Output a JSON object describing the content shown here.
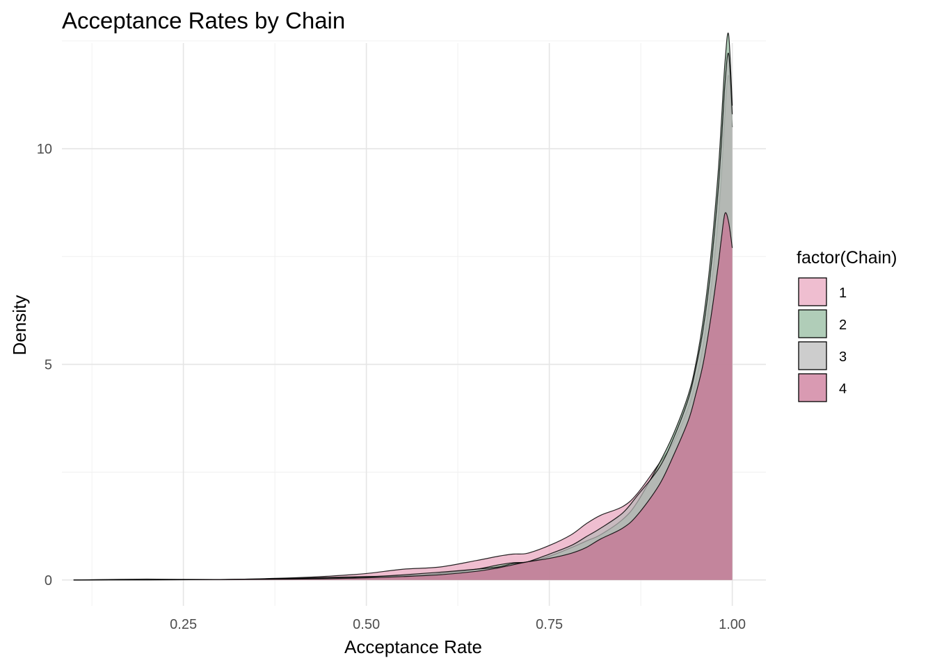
{
  "chart_data": {
    "type": "area",
    "title": "Acceptance Rates by Chain",
    "xlabel": "Acceptance Rate",
    "ylabel": "Density",
    "xlim": [
      0.084,
      1.046
    ],
    "ylim": [
      -0.6,
      12.45
    ],
    "x_ticks": [
      0.25,
      0.5,
      0.75,
      1.0
    ],
    "x_tick_labels": [
      "0.25",
      "0.50",
      "0.75",
      "1.00"
    ],
    "x_minor_ticks": [
      0.125,
      0.375,
      0.625,
      0.875
    ],
    "y_ticks": [
      0,
      5,
      10
    ],
    "y_tick_labels": [
      "0",
      "5",
      "10"
    ],
    "y_minor_ticks": [
      2.5,
      7.5,
      12.5
    ],
    "grid": true,
    "legend": {
      "title": "factor(Chain)",
      "placement": "right",
      "entries": [
        "1",
        "2",
        "3",
        "4"
      ]
    },
    "series": [
      {
        "name": "1",
        "color": "#E8A3BC",
        "x": [
          0.1,
          0.2,
          0.3,
          0.4,
          0.45,
          0.5,
          0.55,
          0.6,
          0.65,
          0.68,
          0.7,
          0.72,
          0.75,
          0.78,
          0.8,
          0.82,
          0.85,
          0.87,
          0.9,
          0.92,
          0.94,
          0.95,
          0.96,
          0.97,
          0.98,
          0.985,
          0.99,
          0.995,
          1.0
        ],
        "y": [
          0.0,
          0.01,
          0.01,
          0.05,
          0.09,
          0.15,
          0.25,
          0.3,
          0.45,
          0.55,
          0.6,
          0.62,
          0.8,
          1.05,
          1.3,
          1.5,
          1.7,
          2.0,
          2.7,
          3.2,
          4.0,
          4.6,
          5.4,
          6.6,
          8.2,
          9.3,
          10.8,
          11.7,
          10.5
        ]
      },
      {
        "name": "2",
        "color": "#8FB89A",
        "x": [
          0.1,
          0.2,
          0.3,
          0.4,
          0.45,
          0.5,
          0.55,
          0.6,
          0.65,
          0.68,
          0.7,
          0.72,
          0.75,
          0.78,
          0.8,
          0.82,
          0.85,
          0.87,
          0.9,
          0.92,
          0.94,
          0.95,
          0.96,
          0.97,
          0.98,
          0.985,
          0.99,
          0.995,
          1.0
        ],
        "y": [
          0.0,
          0.01,
          0.01,
          0.04,
          0.06,
          0.08,
          0.1,
          0.15,
          0.25,
          0.35,
          0.4,
          0.42,
          0.55,
          0.75,
          0.9,
          1.05,
          1.4,
          1.8,
          2.7,
          3.4,
          4.3,
          5.0,
          6.0,
          7.4,
          9.3,
          10.6,
          12.0,
          12.65,
          11.0
        ]
      },
      {
        "name": "3",
        "color": "#B8B8B8",
        "x": [
          0.1,
          0.2,
          0.3,
          0.4,
          0.45,
          0.5,
          0.55,
          0.6,
          0.65,
          0.68,
          0.7,
          0.72,
          0.75,
          0.78,
          0.8,
          0.82,
          0.85,
          0.87,
          0.9,
          0.92,
          0.94,
          0.95,
          0.96,
          0.97,
          0.98,
          0.985,
          0.99,
          0.995,
          1.0
        ],
        "y": [
          0.0,
          0.02,
          0.01,
          0.03,
          0.05,
          0.07,
          0.12,
          0.18,
          0.25,
          0.3,
          0.38,
          0.42,
          0.6,
          0.8,
          1.0,
          1.2,
          1.55,
          1.95,
          2.6,
          3.3,
          4.2,
          4.9,
          5.8,
          7.1,
          8.9,
          10.1,
          11.5,
          12.2,
          10.8
        ]
      },
      {
        "name": "4",
        "color": "#C96F91",
        "x": [
          0.1,
          0.2,
          0.3,
          0.4,
          0.45,
          0.5,
          0.55,
          0.6,
          0.65,
          0.68,
          0.7,
          0.72,
          0.75,
          0.78,
          0.8,
          0.82,
          0.85,
          0.87,
          0.9,
          0.92,
          0.94,
          0.95,
          0.96,
          0.97,
          0.98,
          0.985,
          0.99,
          0.995,
          1.0
        ],
        "y": [
          0.0,
          0.0,
          0.01,
          0.02,
          0.03,
          0.05,
          0.08,
          0.12,
          0.2,
          0.28,
          0.35,
          0.42,
          0.5,
          0.62,
          0.75,
          0.95,
          1.2,
          1.5,
          2.2,
          2.9,
          3.7,
          4.3,
          5.0,
          6.0,
          7.2,
          7.9,
          8.5,
          8.3,
          7.7
        ]
      }
    ]
  }
}
